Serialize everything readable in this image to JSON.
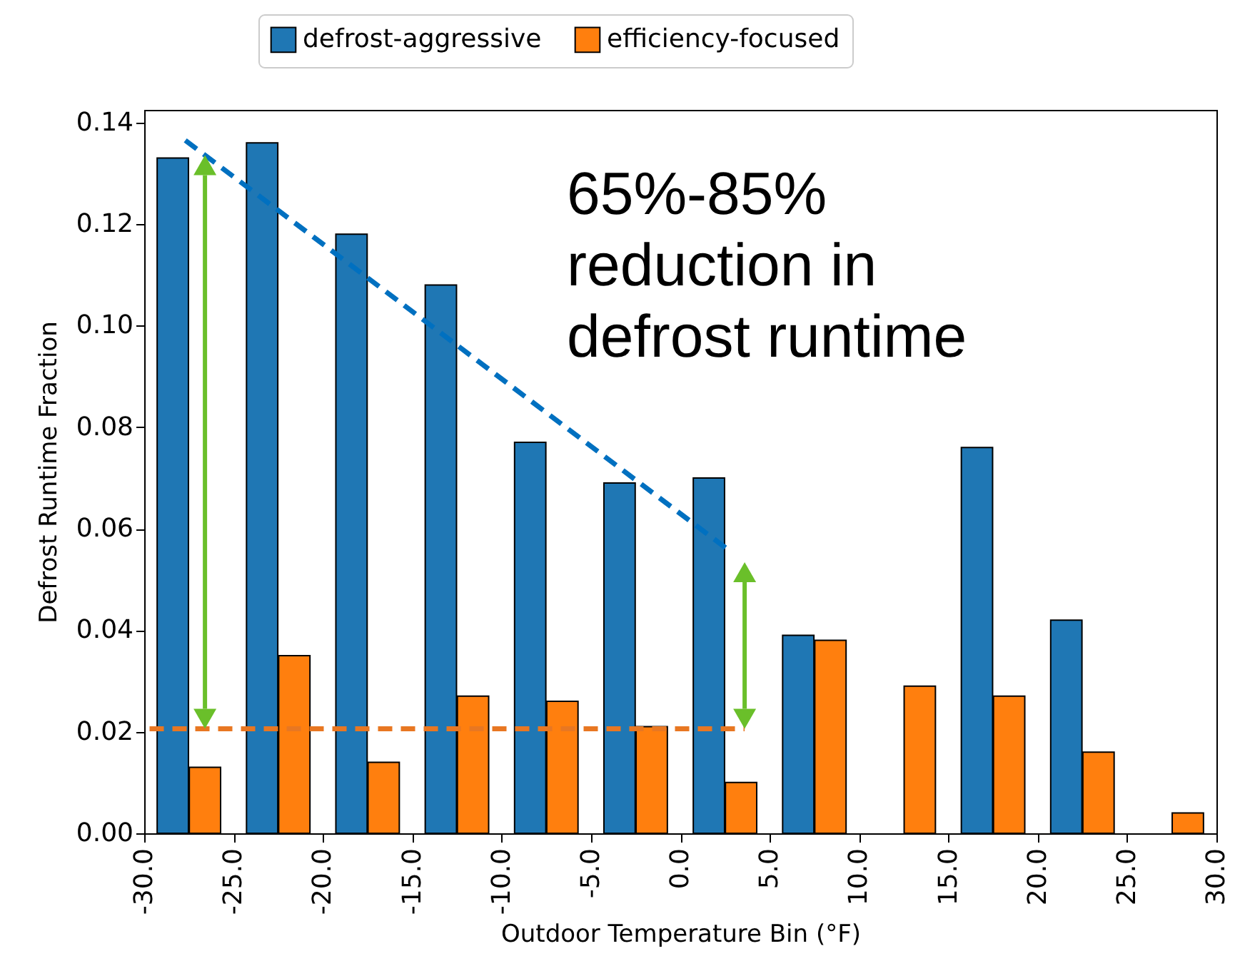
{
  "chart_data": {
    "type": "bar",
    "xlabel": "Outdoor Temperature Bin (°F)",
    "ylabel": "Defrost Runtime Fraction",
    "xlim": [
      -30,
      30
    ],
    "xticks": [
      {
        "value": -30,
        "label": "-30.0"
      },
      {
        "value": -25,
        "label": "-25.0"
      },
      {
        "value": -20,
        "label": "-20.0"
      },
      {
        "value": -15,
        "label": "-15.0"
      },
      {
        "value": -10,
        "label": "-10.0"
      },
      {
        "value": -5,
        "label": "-5.0"
      },
      {
        "value": 0,
        "label": "0.0"
      },
      {
        "value": 5,
        "label": "5.0"
      },
      {
        "value": 10,
        "label": "10.0"
      },
      {
        "value": 15,
        "label": "15.0"
      },
      {
        "value": 20,
        "label": "20.0"
      },
      {
        "value": 25,
        "label": "25.0"
      },
      {
        "value": 30,
        "label": "30.0"
      }
    ],
    "ylim": [
      0,
      0.1425
    ],
    "yticks": [
      {
        "value": 0,
        "label": "0.00"
      },
      {
        "value": 0.02,
        "label": "0.02"
      },
      {
        "value": 0.04,
        "label": "0.04"
      },
      {
        "value": 0.06,
        "label": "0.06"
      },
      {
        "value": 0.08,
        "label": "0.08"
      },
      {
        "value": 0.1,
        "label": "0.10"
      },
      {
        "value": 0.12,
        "label": "0.12"
      },
      {
        "value": 0.14,
        "label": "0.14"
      }
    ],
    "grid": false,
    "legend": "top",
    "annotations": [
      "65%-85%\nreduction in\ndefrost runtime"
    ],
    "series": [
      {
        "name": "defrost-aggressive",
        "color": "#1f77b4",
        "x": [
          -28.4,
          -23.4,
          -18.4,
          -13.4,
          -8.4,
          -3.4,
          1.6,
          6.6,
          16.6,
          21.6
        ],
        "values": [
          0.133,
          0.136,
          0.118,
          0.108,
          0.077,
          0.069,
          0.07,
          0.039,
          0.076,
          0.042
        ]
      },
      {
        "name": "efficiency-focused",
        "color": "#ff7f0e",
        "x": [
          -26.6,
          -21.6,
          -16.6,
          -11.6,
          -6.6,
          -1.6,
          3.4,
          8.4,
          13.4,
          18.4,
          23.4,
          28.4
        ],
        "values": [
          0.013,
          0.035,
          0.014,
          0.027,
          0.026,
          0.021,
          0.01,
          0.038,
          0.029,
          0.027,
          0.016,
          0.004
        ]
      },
      {
        "type": "line",
        "color": "#0070c0",
        "line_style": "dashed",
        "x": [
          -27.7,
          2.7
        ],
        "values": [
          0.1365,
          0.0558
        ]
      },
      {
        "type": "line",
        "color": "#e87722",
        "line_style": "dashed",
        "x": [
          -29.7,
          3.6
        ],
        "values": [
          0.0206,
          0.0206
        ]
      }
    ]
  }
}
